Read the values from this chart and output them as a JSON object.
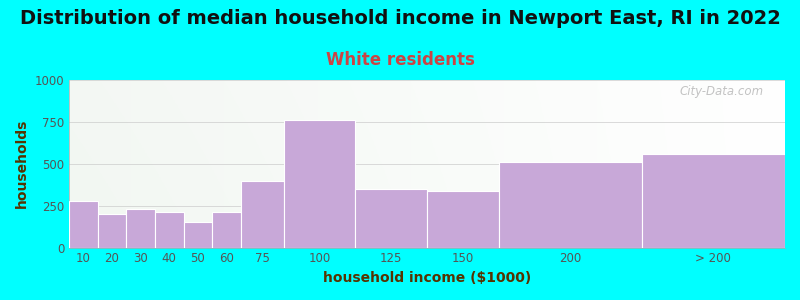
{
  "title": "Distribution of median household income in Newport East, RI in 2022",
  "subtitle": "White residents",
  "xlabel": "household income ($1000)",
  "ylabel": "households",
  "background_color": "#00FFFF",
  "bar_color": "#c8a8d8",
  "bar_edge_color": "#ffffff",
  "categories": [
    "10",
    "20",
    "30",
    "40",
    "50",
    "60",
    "75",
    "100",
    "125",
    "150",
    "200",
    "> 200"
  ],
  "left_edges": [
    0,
    10,
    20,
    30,
    40,
    50,
    60,
    75,
    100,
    125,
    150,
    200
  ],
  "widths": [
    10,
    10,
    10,
    10,
    10,
    10,
    15,
    25,
    25,
    25,
    50,
    50
  ],
  "values": [
    280,
    200,
    230,
    210,
    155,
    210,
    400,
    760,
    350,
    340,
    510,
    560
  ],
  "ylim": [
    0,
    1000
  ],
  "yticks": [
    0,
    250,
    500,
    750,
    1000
  ],
  "title_fontsize": 14,
  "subtitle_fontsize": 12,
  "subtitle_color": "#cc4444",
  "axis_label_fontsize": 10,
  "tick_fontsize": 8.5,
  "watermark": "City-Data.com",
  "watermark_color": "#aaaaaa",
  "tick_positions": [
    5,
    15,
    25,
    35,
    45,
    55,
    67.5,
    87.5,
    112.5,
    137.5,
    175,
    225
  ],
  "tick_labels": [
    "10",
    "20",
    "30",
    "40",
    "50",
    "60",
    "75",
    "100",
    "125",
    "150",
    "200",
    "> 200"
  ],
  "xlim": [
    0,
    250
  ]
}
